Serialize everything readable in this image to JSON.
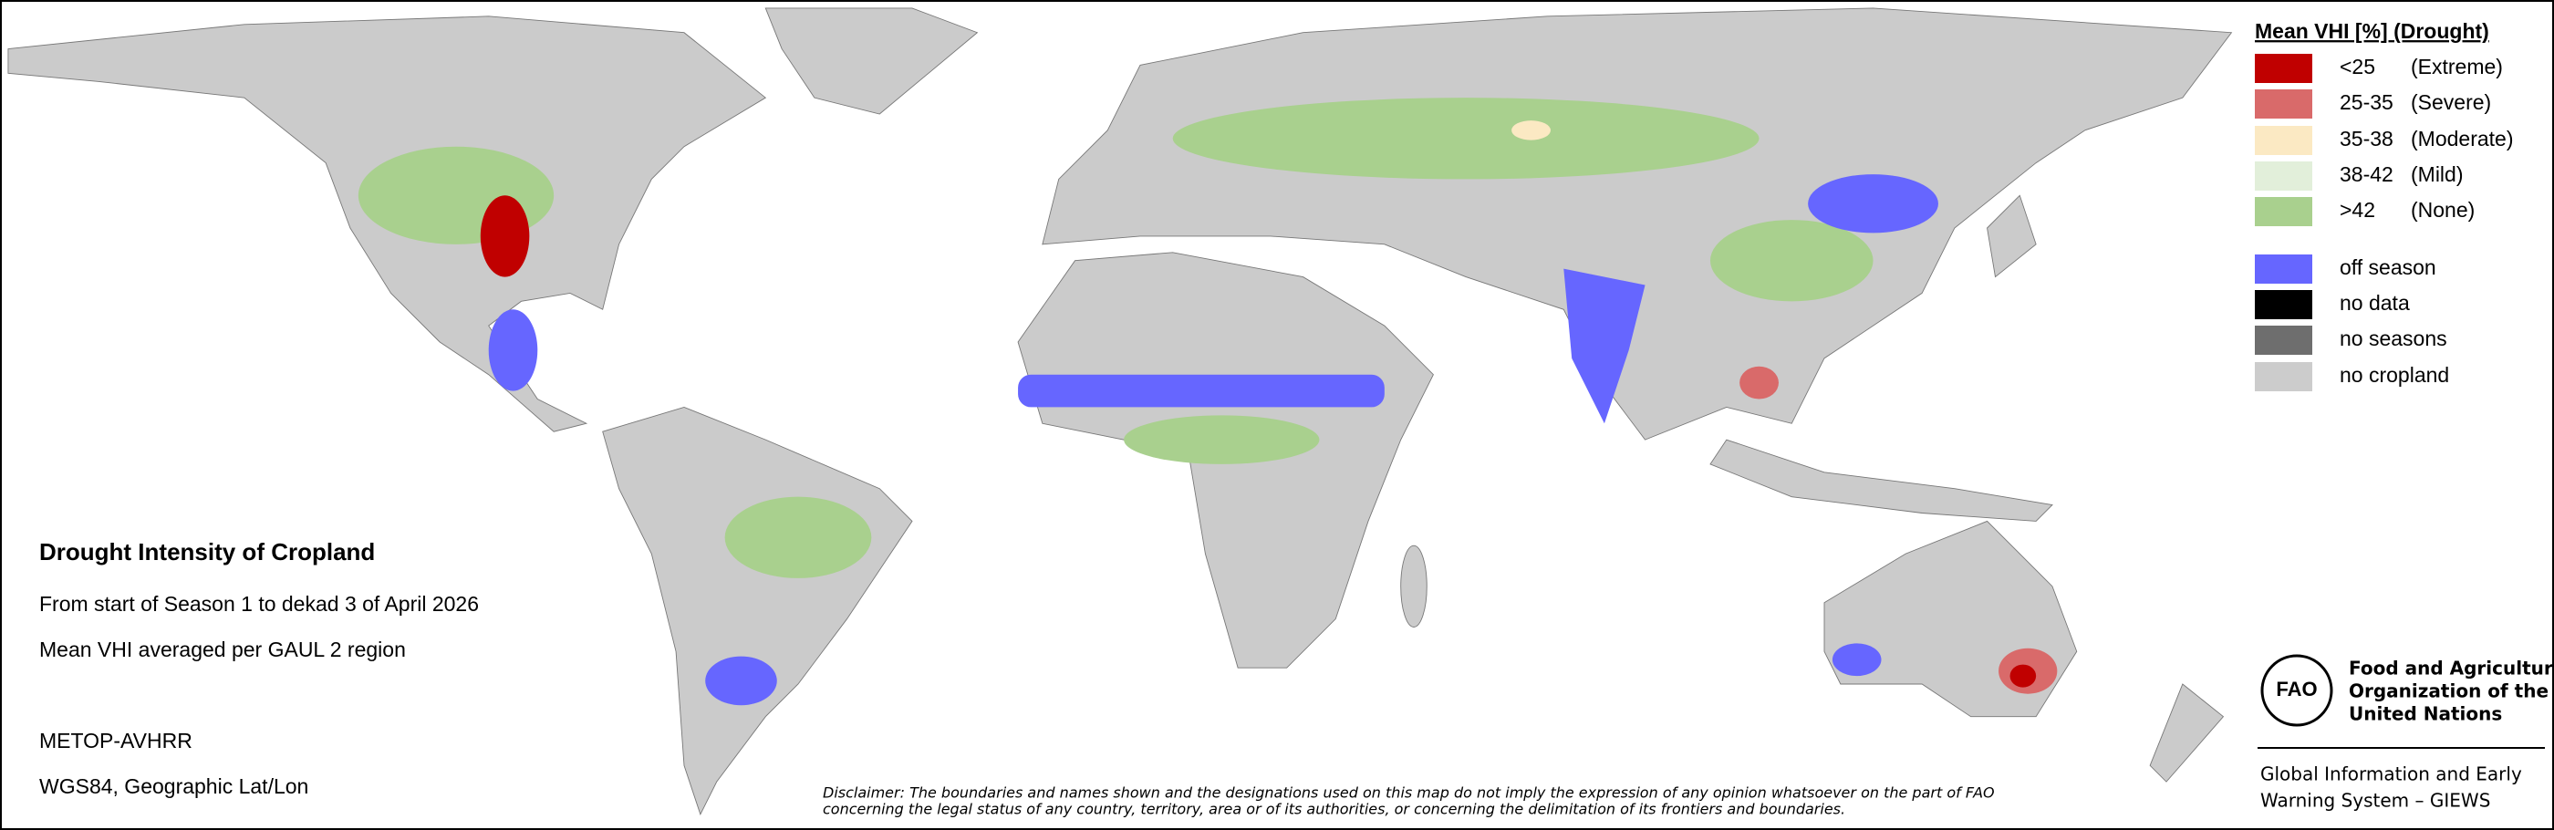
{
  "legend": {
    "title": "Mean VHI [%] (Drought)",
    "classes": [
      {
        "range": "<25",
        "label": "(Extreme)",
        "color": "#c00000"
      },
      {
        "range": "25-35",
        "label": "(Severe)",
        "color": "#d96a6a"
      },
      {
        "range": "35-38",
        "label": "(Moderate)",
        "color": "#fbe9c3"
      },
      {
        "range": "38-42",
        "label": "(Mild)",
        "color": "#e2efda"
      },
      {
        "range": ">42",
        "label": "(None)",
        "color": "#a9d08e"
      }
    ],
    "other": [
      {
        "label": "off season",
        "color": "#6666ff"
      },
      {
        "label": "no data",
        "color": "#000000"
      },
      {
        "label": "no seasons",
        "color": "#6e6e6e"
      },
      {
        "label": "no cropland",
        "color": "#cccccc"
      }
    ]
  },
  "info": {
    "title": "Drought Intensity of Cropland",
    "lines": [
      "From start of Season 1 to dekad 3 of April 2026",
      "Mean VHI averaged per GAUL 2 region",
      "METOP-AVHRR",
      "WGS84, Geographic Lat/Lon"
    ]
  },
  "disclaimer": [
    "Disclaimer: The boundaries and names shown and the designations used on this map do not imply the expression of any opinion whatsoever on the part of FAO",
    "concerning the legal status of any country, territory, area or of its authorities, or concerning the delimitation of its frontiers and boundaries."
  ],
  "logo": {
    "emblem": "FAO",
    "org": [
      "Food and Agriculture",
      "Organization of the",
      "United Nations"
    ],
    "system": [
      "Global Information and Early",
      "Warning System – GIEWS"
    ]
  }
}
